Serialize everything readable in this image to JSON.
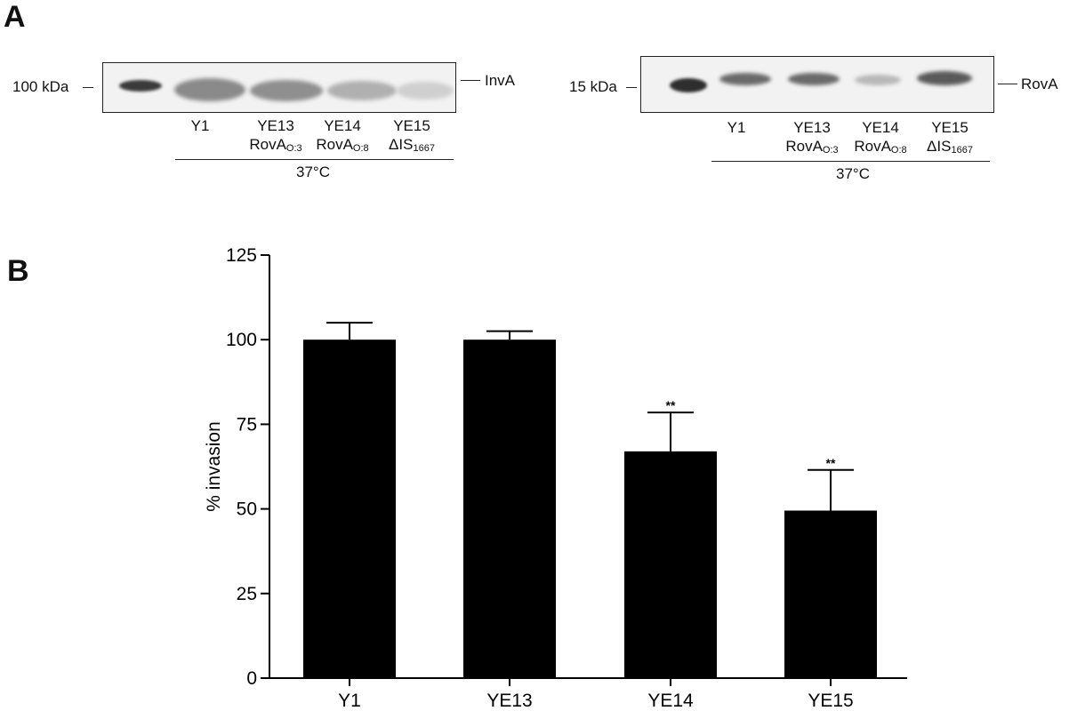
{
  "panel_a": {
    "letter": "A",
    "invA_blot": {
      "marker": "100 kDa",
      "protein": "InvA",
      "lanes": [
        {
          "line1": "Y1"
        },
        {
          "line1": "YE13",
          "line2_main": "RovA",
          "line2_sub": "O:3"
        },
        {
          "line1": "YE14",
          "line2_main": "RovA",
          "line2_sub": "O:8"
        },
        {
          "line1": "YE15",
          "line2_main": "ΔIS",
          "line2_sub": "1667"
        }
      ],
      "condition": "37°C"
    },
    "rovA_blot": {
      "marker": "15 kDa",
      "protein": "RovA",
      "lanes": [
        {
          "line1": "Y1"
        },
        {
          "line1": "YE13",
          "line2_main": "RovA",
          "line2_sub": "O:3"
        },
        {
          "line1": "YE14",
          "line2_main": "RovA",
          "line2_sub": "O:8"
        },
        {
          "line1": "YE15",
          "line2_main": "ΔIS",
          "line2_sub": "1667"
        }
      ],
      "condition": "37°C"
    }
  },
  "panel_b": {
    "letter": "B"
  },
  "chart_data": {
    "type": "bar",
    "categories": [
      "Y1",
      "YE13",
      "YE14",
      "YE15"
    ],
    "values": [
      100,
      100,
      67,
      49.5
    ],
    "errors": [
      5,
      2.5,
      11.5,
      12
    ],
    "significance": [
      "",
      "",
      "**",
      "**"
    ],
    "ylabel": "% invasion",
    "xlabel": "",
    "ylim": [
      0,
      125
    ],
    "yticks": [
      0,
      25,
      50,
      75,
      100,
      125
    ],
    "bar_color": "#000000",
    "grid": false
  }
}
